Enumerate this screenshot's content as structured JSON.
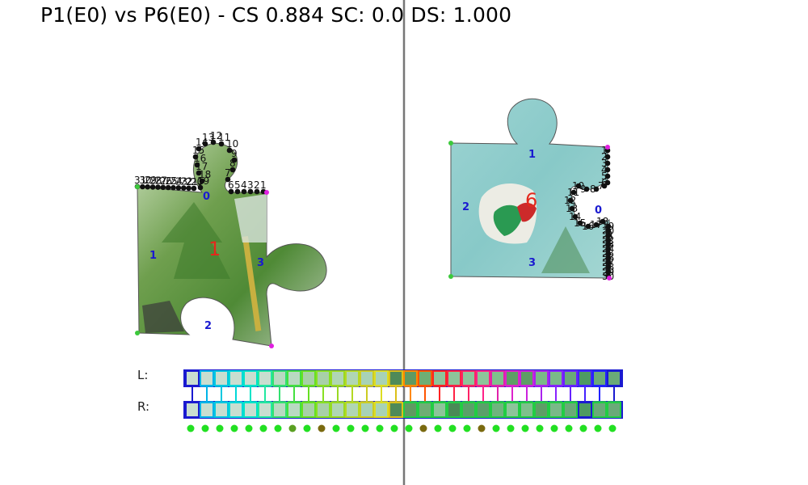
{
  "title": "P1(E0) vs P6(E0) - CS 0.884 SC: 0.0 DS: 1.000",
  "colors": {
    "divider": "#777777",
    "piece_label": "#e4281c",
    "edge_label": "#1a1ad0",
    "point": "#111111",
    "corner_green": "#3cc93c",
    "corner_magenta": "#e020e0",
    "strip_border": "#1a1ad0",
    "match_dot": "#22e022",
    "match_dot_dark": "#7a6a10"
  },
  "left_piece": {
    "piece_label": "1",
    "edge_labels": [
      "0",
      "1",
      "2",
      "3"
    ],
    "point_labels": [
      "1",
      "2",
      "3",
      "4",
      "5",
      "6",
      "7",
      "8",
      "9",
      "10",
      "11",
      "12",
      "13",
      "14",
      "15",
      "16",
      "17",
      "18",
      "19",
      "20",
      "21",
      "22",
      "23",
      "24",
      "25",
      "26",
      "27",
      "28",
      "29",
      "30",
      "31"
    ]
  },
  "right_piece": {
    "piece_label": "6",
    "edge_labels": [
      "0",
      "1",
      "2",
      "3"
    ],
    "point_labels": [
      "1",
      "2",
      "3",
      "4",
      "5",
      "6",
      "7",
      "8",
      "9",
      "10",
      "11",
      "12",
      "13",
      "14",
      "15",
      "16",
      "17",
      "18",
      "19",
      "20",
      "21",
      "22",
      "23",
      "24",
      "25",
      "26",
      "27",
      "28",
      "29",
      "30"
    ]
  },
  "strip": {
    "left_label": "L:",
    "right_label": "R:",
    "left_cells": [
      "#c9ded0",
      "#c9ded0",
      "#c9ded0",
      "#c9ded0",
      "#c9ded0",
      "#c9ded0",
      "#b9d9c2",
      "#b9d9c2",
      "#a8d0a8",
      "#a8d0a8",
      "#b0d6b4",
      "#b0d6b4",
      "#a8d2b6",
      "#a8d2b6",
      "#4f8a58",
      "#5f9a62",
      "#6fae74",
      "#8dc49a",
      "#8dc49a",
      "#8dc49a",
      "#8dc49a",
      "#7fc08c",
      "#5e9e66",
      "#5e9e66",
      "#7ab988",
      "#7ab988",
      "#6aaa78",
      "#4e9a62",
      "#6aaa78",
      "#6aaa78"
    ],
    "left_borders": [
      "#1a1ad0",
      "#00b4e8",
      "#00c8e0",
      "#00d8d8",
      "#00e4c8",
      "#22e8a0",
      "#33e070",
      "#44e040",
      "#66e022",
      "#88e022",
      "#99d922",
      "#b4d922",
      "#cccc22",
      "#dddd22",
      "#dcc018",
      "#ff8800",
      "#ff5500",
      "#ff2222",
      "#ff2244",
      "#ff2266",
      "#ff2288",
      "#e022aa",
      "#dd22cc",
      "#cc22dd",
      "#aa22ee",
      "#8822ff",
      "#6622ff",
      "#4422ff",
      "#2222ff",
      "#1a1ad0"
    ],
    "right_cells": [
      "#c9ded0",
      "#c9ded0",
      "#c9ded0",
      "#c9ded0",
      "#c9ded0",
      "#c9ded0",
      "#b9d9c2",
      "#b9d9c2",
      "#a8d0a8",
      "#a8d0a8",
      "#b0d6b4",
      "#b0d6b4",
      "#a8d2b6",
      "#a8d2b6",
      "#4f8a58",
      "#5f9a62",
      "#6fae74",
      "#8dc49a",
      "#4a8a56",
      "#5aa06a",
      "#5aa06a",
      "#6fb47e",
      "#8dc49a",
      "#7fc08c",
      "#5e9e66",
      "#7ab988",
      "#6aaa78",
      "#4e9a62",
      "#6aaa78",
      "#6aaa78"
    ],
    "right_borders": [
      "#1a1ad0",
      "#00b4e8",
      "#00c8e0",
      "#00d8d8",
      "#00e4c8",
      "#22e8a0",
      "#33e070",
      "#44e040",
      "#66e022",
      "#88e022",
      "#99d922",
      "#b4d922",
      "#cccc22",
      "#dddd22",
      "#dcc018",
      "#22cc44",
      "#22cc44",
      "#22cc44",
      "#22cc44",
      "#22cc44",
      "#22cc44",
      "#22cc44",
      "#22cc44",
      "#22cc44",
      "#22cc44",
      "#22cc44",
      "#22cc44",
      "#1a1ad0",
      "#22cc44",
      "#22cc44"
    ],
    "dot_colors": [
      "#22e022",
      "#22e022",
      "#22e022",
      "#22e022",
      "#22e022",
      "#22e022",
      "#22e022",
      "#5aa022",
      "#22e022",
      "#7a6a10",
      "#22e022",
      "#22e022",
      "#22e022",
      "#22e022",
      "#22e022",
      "#22e022",
      "#7a6a10",
      "#22e022",
      "#22e022",
      "#22e022",
      "#7a6a10",
      "#22e022",
      "#22e022",
      "#22e022",
      "#22e022",
      "#22e022",
      "#22e022",
      "#22e022",
      "#22e022",
      "#22e022"
    ]
  }
}
